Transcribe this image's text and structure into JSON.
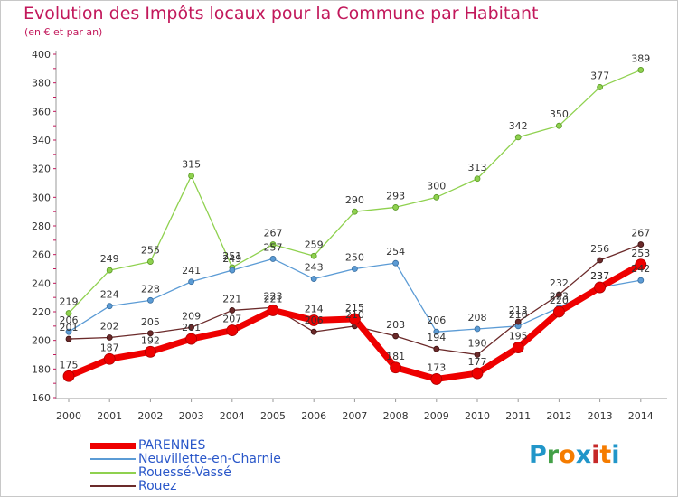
{
  "title": "Evolution des Impôts locaux pour la Commune par Habitant",
  "subtitle": "(en € et par an)",
  "logo": {
    "text": "Proxiti",
    "letters": [
      "P",
      "r",
      "o",
      "x",
      "i",
      "t",
      "i"
    ],
    "letter_colors": [
      "#2196c9",
      "#43a047",
      "#f57c00",
      "#2196c9",
      "#c62828",
      "#f57c00",
      "#2196c9"
    ]
  },
  "chart_data": {
    "type": "line",
    "title": "Evolution des Impôts locaux pour la Commune par Habitant",
    "subtitle": "(en € et par an)",
    "x": [
      "2000",
      "2001",
      "2002",
      "2003",
      "2004",
      "2005",
      "2006",
      "2007",
      "2008",
      "2009",
      "2010",
      "2011",
      "2012",
      "2013",
      "2014"
    ],
    "ylim": [
      160,
      400
    ],
    "yticks": [
      160,
      180,
      200,
      220,
      240,
      260,
      280,
      300,
      320,
      340,
      360,
      380,
      400
    ],
    "grid": false,
    "legend_position": "bottom-left",
    "series": [
      {
        "name": "PARENNES",
        "color": "#ee0000",
        "values": [
          175,
          187,
          192,
          201,
          207,
          221,
          214,
          215,
          181,
          173,
          177,
          195,
          220,
          237,
          253
        ]
      },
      {
        "name": "Neuvillette-en-Charnie",
        "color": "#5b9bd5",
        "values": [
          206,
          224,
          228,
          241,
          249,
          257,
          243,
          250,
          254,
          206,
          208,
          210,
          223,
          237,
          242
        ]
      },
      {
        "name": "Rouessé-Vassé",
        "color": "#8fd14f",
        "values": [
          219,
          249,
          255,
          315,
          251,
          267,
          259,
          290,
          293,
          300,
          313,
          342,
          350,
          377,
          389
        ]
      },
      {
        "name": "Rouez",
        "color": "#6b2a2a",
        "values": [
          201,
          202,
          205,
          209,
          221,
          223,
          206,
          210,
          203,
          194,
          190,
          213,
          232,
          256,
          267
        ]
      }
    ],
    "data_labels": [
      [
        "175",
        "187",
        "192",
        "201",
        "207",
        "221",
        "214",
        "215",
        "181",
        "173",
        "177",
        "195",
        "220",
        "237",
        "253"
      ],
      [
        "206",
        "224",
        "228",
        "241",
        "249",
        "257",
        "243",
        "250",
        "254",
        "206",
        "208",
        "210",
        "223",
        "237",
        "242"
      ],
      [
        "219",
        "249",
        "255",
        "315",
        "251",
        "267",
        "259",
        "290",
        "293",
        "300",
        "313",
        "342",
        "350",
        "377",
        "389"
      ],
      [
        "201",
        "202",
        "205",
        "209",
        "221",
        "223",
        "206",
        "210",
        "203",
        "194",
        "190",
        "213",
        "232",
        "256",
        "267"
      ]
    ]
  }
}
